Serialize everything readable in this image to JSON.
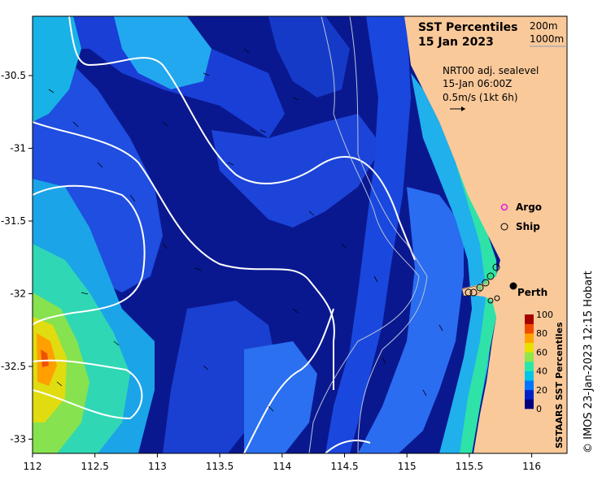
{
  "title": {
    "line1": "SST Percentiles",
    "line2": "15 Jan 2023"
  },
  "contour_legend": [
    "200m",
    "1000m"
  ],
  "current_info": {
    "line1": "NRT00 adj. sealevel",
    "line2": "15-Jan 06:00Z",
    "line3": "0.5m/s (1kt 6h)"
  },
  "markers": {
    "argo": "Argo",
    "ship": "Ship",
    "city": "Perth"
  },
  "axes": {
    "x_ticks": [
      "112",
      "112.5",
      "113",
      "113.5",
      "114",
      "114.5",
      "115",
      "115.5",
      "116"
    ],
    "y_ticks": [
      "-30.5",
      "-31",
      "-31.5",
      "-32",
      "-32.5",
      "-33"
    ]
  },
  "colorbar": {
    "label": "SSTAARS SST Percentiles",
    "ticks": [
      "100",
      "80",
      "60",
      "40",
      "20",
      "0"
    ],
    "colors": [
      "#00007f",
      "#0021c8",
      "#0074ff",
      "#00c4e8",
      "#29e7a8",
      "#8fe64d",
      "#e8e000",
      "#ffa300",
      "#f14a00",
      "#a50000"
    ]
  },
  "credit": "© IMOS 23-Jan-2023 12:15 Hobart",
  "colors": {
    "land": "#fac99a",
    "deep_blue": "#0c1a8c",
    "argo_marker": "#e020e0"
  }
}
